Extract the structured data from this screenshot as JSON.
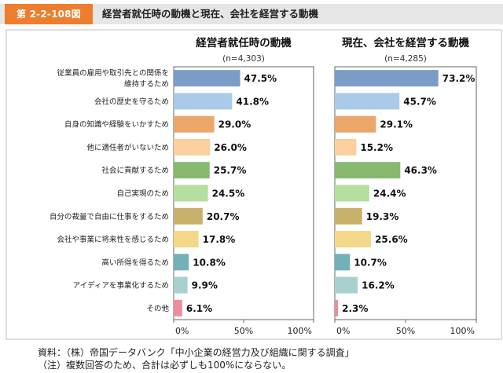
{
  "header": {
    "figure_number": "第 2-2-108図",
    "figure_title": "経営者就任時の動機と現在、会社を経営する動機"
  },
  "chart_data": [
    {
      "type": "bar",
      "orientation": "horizontal",
      "title": "経営者就任時の動機",
      "sample_size": "(n=4,303)",
      "categories": [
        [
          "従業員の雇用や取引先との関係を",
          "維持するため"
        ],
        [
          "会社の歴史を守るため"
        ],
        [
          "自身の知識や経験をいかすため"
        ],
        [
          "他に適任者がいないため"
        ],
        [
          "社会に貢献するため"
        ],
        [
          "自己実現のため"
        ],
        [
          "自分の裁量で自由に仕事をするため"
        ],
        [
          "会社や事業に将来性を感じるため"
        ],
        [
          "高い所得を得るため"
        ],
        [
          "アイディアを事業化するため"
        ],
        [
          "その他"
        ]
      ],
      "values": [
        47.5,
        41.8,
        29.0,
        26.0,
        25.7,
        24.5,
        20.7,
        17.8,
        10.8,
        9.9,
        6.1
      ],
      "value_labels": [
        "47.5%",
        "41.8%",
        "29.0%",
        "26.0%",
        "25.7%",
        "24.5%",
        "20.7%",
        "17.8%",
        "10.8%",
        "9.9%",
        "6.1%"
      ],
      "xlim": [
        0,
        100
      ],
      "x_tick_labels": [
        "0%",
        "50%",
        "100%"
      ]
    },
    {
      "type": "bar",
      "orientation": "horizontal",
      "title": "現在、会社を経営する動機",
      "sample_size": "(n=4,285)",
      "values": [
        73.2,
        45.7,
        29.1,
        15.2,
        46.3,
        24.4,
        19.3,
        25.6,
        10.7,
        16.2,
        2.3
      ],
      "value_labels": [
        "73.2%",
        "45.7%",
        "29.1%",
        "15.2%",
        "46.3%",
        "24.4%",
        "19.3%",
        "25.6%",
        "10.7%",
        "16.2%",
        "2.3%"
      ],
      "xlim": [
        0,
        100
      ],
      "x_tick_labels": [
        "0%",
        "50%",
        "100%"
      ]
    }
  ],
  "bar_colors": [
    "#7b9cc6",
    "#a9cbe8",
    "#eca66a",
    "#fbcf9e",
    "#88b96e",
    "#b4df9f",
    "#c7b16a",
    "#f3d88a",
    "#73b0b8",
    "#a8d0ce",
    "#ea8e99"
  ],
  "footer": {
    "source": "資料：（株）帝国データバンク「中小企業の経営力及び組織に関する調査」",
    "note": "（注）複数回答のため、合計は必ずしも100%にならない。"
  }
}
